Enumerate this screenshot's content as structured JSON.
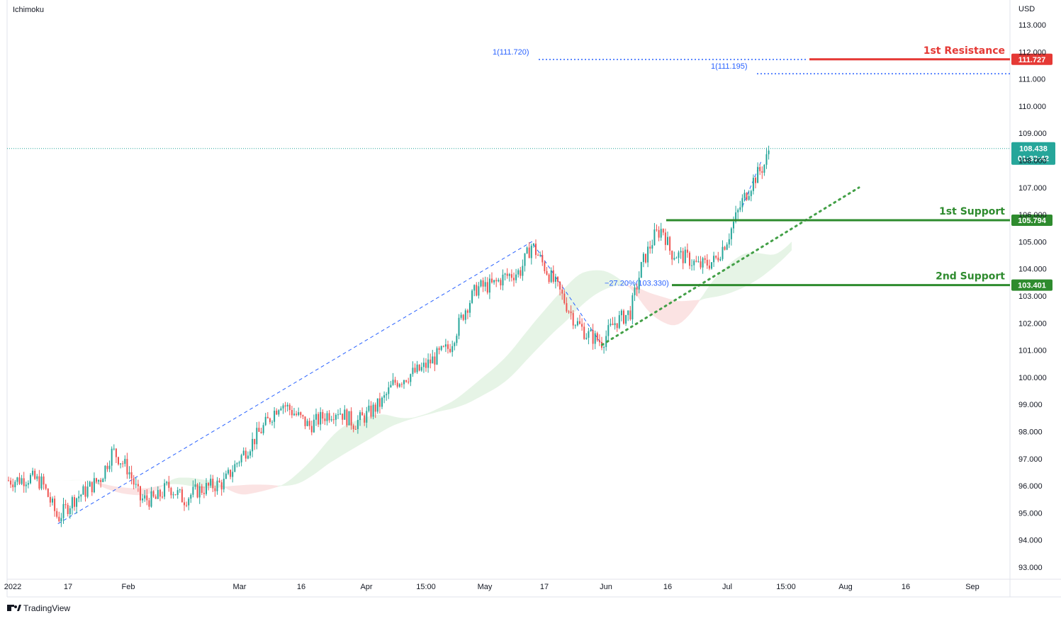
{
  "header": {
    "indicator_name": "Ichimoku",
    "currency": "USD"
  },
  "brand": {
    "name": "TradingView"
  },
  "colors": {
    "up": "#26a69a",
    "down": "#ef5350",
    "resistance": "#e53935",
    "support": "#2e8b2e",
    "fib": "#2962ff",
    "trend": "#43a047",
    "price": "#26a69a",
    "cloud_bull": "#e6f4e6",
    "cloud_bear": "#fbe3e3"
  },
  "annotations": {
    "resistance1": {
      "label": "1st Resistance",
      "value": 111.727,
      "value_text": "111.727"
    },
    "support1": {
      "label": "1st Support",
      "value": 105.794,
      "value_text": "105.794"
    },
    "support2": {
      "label": "2nd Support",
      "value": 103.401,
      "value_text": "103.401"
    },
    "fib_high": {
      "label": "1(111.720)",
      "value": 111.72
    },
    "fib_mid": {
      "label": "1(111.195)",
      "value": 111.195
    },
    "fib_retrace": {
      "label": "−27.20%(103.330)",
      "value": 103.33
    },
    "current_price": {
      "value": 108.438,
      "value_text": "108.438",
      "countdown": "01:33:42"
    }
  },
  "chart_data": {
    "type": "candlestick",
    "title": "",
    "ylabel": "USD",
    "ylim": [
      92.5,
      113.5
    ],
    "y_ticks": [
      "93.000",
      "94.000",
      "95.000",
      "96.000",
      "97.000",
      "98.000",
      "99.000",
      "100.000",
      "101.000",
      "102.000",
      "103.000",
      "104.000",
      "105.000",
      "106.000",
      "107.000",
      "108.000",
      "109.000",
      "110.000",
      "111.000",
      "112.000",
      "113.000"
    ],
    "x_ticks": [
      "2022",
      "17",
      "Feb",
      "Mar",
      "16",
      "Apr",
      "15:00",
      "May",
      "17",
      "Jun",
      "16",
      "Jul",
      "15:00",
      "Aug",
      "16",
      "Sep"
    ],
    "grid": false,
    "series": [
      {
        "name": "price",
        "points": [
          {
            "d": "Jan 03",
            "v": 96.2
          },
          {
            "d": "Jan 07",
            "v": 96.3
          },
          {
            "d": "Jan 10",
            "v": 96.1
          },
          {
            "d": "Jan 14",
            "v": 94.8
          },
          {
            "d": "Jan 18",
            "v": 95.5
          },
          {
            "d": "Jan 21",
            "v": 95.8
          },
          {
            "d": "Jan 25",
            "v": 96.3
          },
          {
            "d": "Jan 28",
            "v": 97.3
          },
          {
            "d": "Feb 01",
            "v": 96.6
          },
          {
            "d": "Feb 04",
            "v": 95.5
          },
          {
            "d": "Feb 08",
            "v": 95.5
          },
          {
            "d": "Feb 11",
            "v": 96.0
          },
          {
            "d": "Feb 15",
            "v": 95.5
          },
          {
            "d": "Feb 18",
            "v": 95.8
          },
          {
            "d": "Feb 22",
            "v": 96.0
          },
          {
            "d": "Feb 25",
            "v": 96.1
          },
          {
            "d": "Mar 01",
            "v": 97.0
          },
          {
            "d": "Mar 04",
            "v": 97.6
          },
          {
            "d": "Mar 08",
            "v": 98.4
          },
          {
            "d": "Mar 11",
            "v": 99.1
          },
          {
            "d": "Mar 15",
            "v": 98.6
          },
          {
            "d": "Mar 18",
            "v": 98.2
          },
          {
            "d": "Mar 22",
            "v": 98.6
          },
          {
            "d": "Mar 25",
            "v": 98.8
          },
          {
            "d": "Mar 29",
            "v": 98.3
          },
          {
            "d": "Apr 01",
            "v": 98.6
          },
          {
            "d": "Apr 05",
            "v": 99.1
          },
          {
            "d": "Apr 08",
            "v": 99.8
          },
          {
            "d": "Apr 12",
            "v": 100.1
          },
          {
            "d": "Apr 15",
            "v": 100.3
          },
          {
            "d": "Apr 19",
            "v": 100.8
          },
          {
            "d": "Apr 22",
            "v": 101.1
          },
          {
            "d": "Apr 26",
            "v": 102.5
          },
          {
            "d": "Apr 29",
            "v": 103.3
          },
          {
            "d": "May 03",
            "v": 103.4
          },
          {
            "d": "May 06",
            "v": 103.7
          },
          {
            "d": "May 10",
            "v": 103.9
          },
          {
            "d": "May 13",
            "v": 104.9
          },
          {
            "d": "May 17",
            "v": 103.9
          },
          {
            "d": "May 20",
            "v": 103.2
          },
          {
            "d": "May 24",
            "v": 102.1
          },
          {
            "d": "May 27",
            "v": 101.6
          },
          {
            "d": "May 31",
            "v": 101.3
          },
          {
            "d": "Jun 03",
            "v": 102.0
          },
          {
            "d": "Jun 07",
            "v": 102.4
          },
          {
            "d": "Jun 10",
            "v": 104.2
          },
          {
            "d": "Jun 13",
            "v": 105.2
          },
          {
            "d": "Jun 15",
            "v": 105.5
          },
          {
            "d": "Jun 17",
            "v": 104.6
          },
          {
            "d": "Jun 21",
            "v": 104.4
          },
          {
            "d": "Jun 24",
            "v": 104.1
          },
          {
            "d": "Jun 28",
            "v": 104.3
          },
          {
            "d": "Jul 01",
            "v": 105.1
          },
          {
            "d": "Jul 05",
            "v": 106.5
          },
          {
            "d": "Jul 08",
            "v": 107.3
          },
          {
            "d": "Jul 11",
            "v": 107.9
          },
          {
            "d": "Jul 12",
            "v": 108.44
          }
        ]
      }
    ],
    "annotations": [
      {
        "type": "hline",
        "name": "1st Resistance",
        "y": 111.727
      },
      {
        "type": "hline",
        "name": "1st Support",
        "y": 105.794
      },
      {
        "type": "hline",
        "name": "2nd Support",
        "y": 103.401
      },
      {
        "type": "fib",
        "label": "1(111.720)",
        "y": 111.72
      },
      {
        "type": "fib",
        "label": "1(111.195)",
        "y": 111.195
      },
      {
        "type": "fib",
        "label": "−27.20%(103.330)",
        "y": 103.33
      },
      {
        "type": "current_price",
        "y": 108.438
      }
    ]
  }
}
